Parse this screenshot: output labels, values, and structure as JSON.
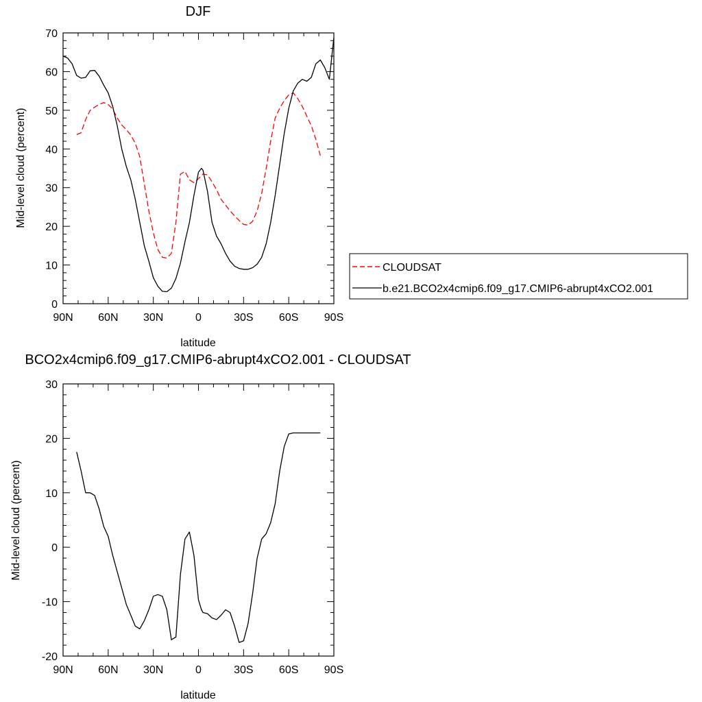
{
  "chart_data": [
    {
      "type": "line",
      "title": "DJF",
      "xlabel": "latitude",
      "ylabel": "Mid-level cloud (percent)",
      "xlim": [
        -90,
        90
      ],
      "ylim": [
        0,
        70
      ],
      "x_ticks": [
        {
          "value": -90,
          "label": "90N"
        },
        {
          "value": -60,
          "label": "60N"
        },
        {
          "value": -30,
          "label": "30N"
        },
        {
          "value": 0,
          "label": "0"
        },
        {
          "value": 30,
          "label": "30S"
        },
        {
          "value": 60,
          "label": "60S"
        },
        {
          "value": 90,
          "label": "90S"
        }
      ],
      "y_ticks": [
        {
          "value": 0,
          "label": "0"
        },
        {
          "value": 10,
          "label": "10"
        },
        {
          "value": 20,
          "label": "20"
        },
        {
          "value": 30,
          "label": "30"
        },
        {
          "value": 40,
          "label": "40"
        },
        {
          "value": 50,
          "label": "50"
        },
        {
          "value": 60,
          "label": "60"
        },
        {
          "value": 70,
          "label": "70"
        }
      ],
      "legend": "right",
      "series": [
        {
          "name": "CLOUDSAT",
          "color": "#ff0000",
          "dash": true,
          "x": [
            -81,
            -78,
            -75,
            -72,
            -69,
            -66,
            -63,
            -60,
            -57,
            -54,
            -51,
            -48,
            -45,
            -42,
            -39,
            -36,
            -33,
            -30,
            -27,
            -24,
            -21,
            -18,
            -15,
            -12,
            -9,
            -6,
            -3,
            0,
            3,
            6,
            9,
            12,
            15,
            18,
            21,
            24,
            27,
            30,
            33,
            36,
            39,
            42,
            45,
            48,
            51,
            54,
            57,
            60,
            63,
            66,
            69,
            72,
            75,
            78,
            81
          ],
          "y": [
            43.7,
            44.2,
            47.6,
            50.0,
            50.8,
            51.5,
            52.0,
            51.5,
            50.3,
            48.0,
            46.2,
            45.0,
            43.6,
            41.5,
            38.0,
            31.0,
            24.0,
            18.3,
            14.0,
            12.0,
            11.8,
            13.0,
            21.0,
            33.5,
            34.2,
            32.0,
            31.3,
            32.3,
            33.5,
            33.3,
            31.5,
            29.5,
            27.0,
            25.5,
            24.0,
            22.7,
            21.5,
            20.5,
            20.3,
            21.3,
            24.0,
            28.5,
            35.0,
            42.0,
            48.0,
            50.5,
            52.5,
            54.0,
            54.5,
            53.0,
            51.0,
            48.5,
            46.0,
            42.5,
            38.3
          ]
        },
        {
          "name": "b.e21.BCO2x4cmip6.f09_g17.CMIP6-abrupt4xCO2.001",
          "color": "#000000",
          "dash": false,
          "x": [
            -90,
            -87,
            -84,
            -81,
            -78,
            -75,
            -72,
            -69,
            -66,
            -63,
            -60,
            -57,
            -54,
            -51,
            -48,
            -45,
            -42,
            -39,
            -36,
            -33,
            -30,
            -27,
            -24,
            -21,
            -18,
            -15,
            -12,
            -9,
            -6,
            -3,
            0,
            2,
            3,
            6,
            9,
            12,
            15,
            18,
            21,
            24,
            27,
            30,
            33,
            36,
            39,
            42,
            45,
            48,
            51,
            54,
            57,
            60,
            63,
            66,
            69,
            72,
            75,
            78,
            81,
            84,
            87,
            90
          ],
          "y": [
            64.0,
            63.5,
            62.0,
            59.0,
            58.3,
            58.5,
            60.2,
            60.3,
            58.8,
            56.5,
            54.5,
            51.0,
            46.0,
            40.0,
            35.5,
            32.0,
            27.0,
            21.0,
            15.0,
            11.0,
            6.7,
            4.5,
            3.2,
            3.1,
            4.0,
            6.5,
            10.5,
            16.0,
            21.0,
            28.0,
            34.0,
            35.0,
            34.5,
            29.0,
            21.0,
            17.5,
            15.5,
            13.0,
            11.0,
            9.7,
            9.1,
            8.9,
            8.9,
            9.3,
            10.2,
            12.0,
            15.5,
            21.0,
            28.0,
            36.0,
            44.0,
            50.5,
            55.0,
            57.0,
            58.0,
            57.5,
            58.5,
            62.0,
            63.0,
            61.0,
            58.0,
            68.8
          ]
        }
      ]
    },
    {
      "type": "line",
      "title": "BCO2x4cmip6.f09_g17.CMIP6-abrupt4xCO2.001 - CLOUDSAT",
      "xlabel": "latitude",
      "ylabel": "Mid-level cloud (percent)",
      "xlim": [
        -90,
        90
      ],
      "ylim": [
        -20,
        30
      ],
      "x_ticks": [
        {
          "value": -90,
          "label": "90N"
        },
        {
          "value": -60,
          "label": "60N"
        },
        {
          "value": -30,
          "label": "30N"
        },
        {
          "value": 0,
          "label": "0"
        },
        {
          "value": 30,
          "label": "30S"
        },
        {
          "value": 60,
          "label": "60S"
        },
        {
          "value": 90,
          "label": "90S"
        }
      ],
      "y_ticks": [
        {
          "value": -20,
          "label": "-20"
        },
        {
          "value": -10,
          "label": "-10"
        },
        {
          "value": 0,
          "label": "0"
        },
        {
          "value": 10,
          "label": "10"
        },
        {
          "value": 20,
          "label": "20"
        },
        {
          "value": 30,
          "label": "30"
        }
      ],
      "series": [
        {
          "color": "#000000",
          "dash": false,
          "x": [
            -81,
            -78,
            -75,
            -72,
            -69,
            -66,
            -63,
            -60,
            -57,
            -54,
            -51,
            -48,
            -45,
            -42,
            -39,
            -36,
            -33,
            -30,
            -27,
            -24,
            -21,
            -18,
            -15,
            -12,
            -9,
            -6,
            -3,
            0,
            2,
            3,
            6,
            9,
            12,
            15,
            18,
            21,
            24,
            27,
            30,
            33,
            36,
            39,
            42,
            45,
            48,
            51,
            54,
            57,
            60,
            63,
            66,
            69,
            72,
            75,
            78,
            81
          ],
          "y": [
            17.5,
            14.0,
            10.0,
            10.0,
            9.5,
            7.0,
            3.8,
            2.0,
            -1.5,
            -4.5,
            -7.5,
            -10.5,
            -12.5,
            -14.5,
            -15.0,
            -13.5,
            -11.5,
            -9.0,
            -8.7,
            -9.0,
            -11.5,
            -17.0,
            -16.5,
            -5.0,
            1.5,
            2.8,
            -1.5,
            -9.7,
            -11.5,
            -12.0,
            -12.2,
            -13.0,
            -13.3,
            -12.5,
            -11.5,
            -12.0,
            -14.5,
            -17.5,
            -17.2,
            -14.0,
            -8.5,
            -2.0,
            1.5,
            2.5,
            4.5,
            8.0,
            14.0,
            18.5,
            20.8,
            21.0,
            21.0,
            21.0,
            21.0,
            21.0,
            21.0,
            21.0
          ]
        }
      ]
    }
  ]
}
